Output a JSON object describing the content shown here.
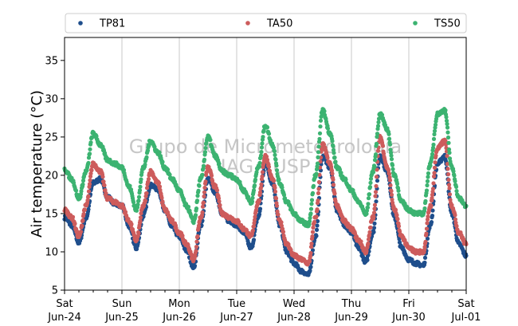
{
  "chart_data": {
    "type": "scatter",
    "title": "",
    "xlabel": "",
    "ylabel": "Air temperature (°C)",
    "ylim": [
      5,
      38
    ],
    "xlim": [
      "2024-06-24 00:00",
      "2024-07-01 00:00"
    ],
    "yticks": [
      5,
      10,
      15,
      20,
      25,
      30,
      35
    ],
    "xticks": [
      {
        "top": "Sat",
        "bottom": "Jun-24"
      },
      {
        "top": "Sun",
        "bottom": "Jun-25"
      },
      {
        "top": "Mon",
        "bottom": "Jun-26"
      },
      {
        "top": "Tue",
        "bottom": "Jun-27"
      },
      {
        "top": "Wed",
        "bottom": "Jun-28"
      },
      {
        "top": "Thu",
        "bottom": "Jun-29"
      },
      {
        "top": "Fri",
        "bottom": "Jun-30"
      },
      {
        "top": "Sat",
        "bottom": "Jul-01"
      }
    ],
    "grid": "vertical-daily",
    "legend": "top",
    "watermark": {
      "line1": "Grupo de Micrometeorologia",
      "line2": "IAG - USP"
    },
    "series": [
      {
        "name": "TP81",
        "color": "#1f4e8c",
        "points": [
          [
            "2024-06-24 00:00",
            14.5
          ],
          [
            "2024-06-24 03:00",
            13.5
          ],
          [
            "2024-06-24 06:00",
            11.2
          ],
          [
            "2024-06-24 09:00",
            14.5
          ],
          [
            "2024-06-24 12:00",
            19.0
          ],
          [
            "2024-06-24 15:00",
            19.5
          ],
          [
            "2024-06-24 18:00",
            17.2
          ],
          [
            "2024-06-24 21:00",
            16.3
          ],
          [
            "2024-06-25 00:00",
            16.0
          ],
          [
            "2024-06-25 03:00",
            13.3
          ],
          [
            "2024-06-25 06:00",
            10.5
          ],
          [
            "2024-06-25 09:00",
            14.8
          ],
          [
            "2024-06-25 12:00",
            18.7
          ],
          [
            "2024-06-25 15:00",
            18.2
          ],
          [
            "2024-06-25 18:00",
            15.5
          ],
          [
            "2024-06-25 21:00",
            13.2
          ],
          [
            "2024-06-26 00:00",
            12.0
          ],
          [
            "2024-06-26 03:00",
            10.2
          ],
          [
            "2024-06-26 06:00",
            8.0
          ],
          [
            "2024-06-26 09:00",
            13.5
          ],
          [
            "2024-06-26 12:00",
            19.5
          ],
          [
            "2024-06-26 15:00",
            17.8
          ],
          [
            "2024-06-26 18:00",
            15.0
          ],
          [
            "2024-06-26 21:00",
            14.0
          ],
          [
            "2024-06-27 00:00",
            13.5
          ],
          [
            "2024-06-27 03:00",
            12.5
          ],
          [
            "2024-06-27 06:00",
            10.5
          ],
          [
            "2024-06-27 09:00",
            14.5
          ],
          [
            "2024-06-27 12:00",
            21.5
          ],
          [
            "2024-06-27 15:00",
            19.0
          ],
          [
            "2024-06-27 18:00",
            13.5
          ],
          [
            "2024-06-27 21:00",
            10.0
          ],
          [
            "2024-06-28 00:00",
            8.5
          ],
          [
            "2024-06-28 03:00",
            7.5
          ],
          [
            "2024-06-28 06:00",
            7.0
          ],
          [
            "2024-06-28 09:00",
            12.0
          ],
          [
            "2024-06-28 12:00",
            22.5
          ],
          [
            "2024-06-28 15:00",
            21.0
          ],
          [
            "2024-06-28 18:00",
            15.5
          ],
          [
            "2024-06-28 21:00",
            13.5
          ],
          [
            "2024-06-29 00:00",
            12.5
          ],
          [
            "2024-06-29 03:00",
            10.5
          ],
          [
            "2024-06-29 06:00",
            8.7
          ],
          [
            "2024-06-29 09:00",
            12.5
          ],
          [
            "2024-06-29 12:00",
            22.5
          ],
          [
            "2024-06-29 15:00",
            20.5
          ],
          [
            "2024-06-29 18:00",
            14.5
          ],
          [
            "2024-06-29 21:00",
            10.5
          ],
          [
            "2024-06-30 00:00",
            9.0
          ],
          [
            "2024-06-30 03:00",
            8.5
          ],
          [
            "2024-06-30 06:00",
            8.2
          ],
          [
            "2024-06-30 09:00",
            13.5
          ],
          [
            "2024-06-30 12:00",
            21.5
          ],
          [
            "2024-06-30 15:00",
            22.5
          ],
          [
            "2024-06-30 18:00",
            15.0
          ],
          [
            "2024-06-30 21:00",
            11.0
          ],
          [
            "2024-07-01 00:00",
            9.5
          ]
        ]
      },
      {
        "name": "TA50",
        "color": "#cd5c5c",
        "points": [
          [
            "2024-06-24 00:00",
            15.5
          ],
          [
            "2024-06-24 03:00",
            14.5
          ],
          [
            "2024-06-24 06:00",
            12.0
          ],
          [
            "2024-06-24 09:00",
            16.0
          ],
          [
            "2024-06-24 12:00",
            21.5
          ],
          [
            "2024-06-24 15:00",
            20.5
          ],
          [
            "2024-06-24 18:00",
            17.0
          ],
          [
            "2024-06-24 21:00",
            16.5
          ],
          [
            "2024-06-25 00:00",
            16.0
          ],
          [
            "2024-06-25 03:00",
            14.0
          ],
          [
            "2024-06-25 06:00",
            11.5
          ],
          [
            "2024-06-25 09:00",
            16.0
          ],
          [
            "2024-06-25 12:00",
            20.5
          ],
          [
            "2024-06-25 15:00",
            19.0
          ],
          [
            "2024-06-25 18:00",
            15.5
          ],
          [
            "2024-06-25 21:00",
            14.0
          ],
          [
            "2024-06-26 00:00",
            12.5
          ],
          [
            "2024-06-26 03:00",
            11.0
          ],
          [
            "2024-06-26 06:00",
            9.0
          ],
          [
            "2024-06-26 09:00",
            14.5
          ],
          [
            "2024-06-26 12:00",
            21.0
          ],
          [
            "2024-06-26 15:00",
            18.5
          ],
          [
            "2024-06-26 18:00",
            15.0
          ],
          [
            "2024-06-26 21:00",
            14.5
          ],
          [
            "2024-06-27 00:00",
            14.0
          ],
          [
            "2024-06-27 03:00",
            13.0
          ],
          [
            "2024-06-27 06:00",
            12.0
          ],
          [
            "2024-06-27 09:00",
            16.5
          ],
          [
            "2024-06-27 12:00",
            22.5
          ],
          [
            "2024-06-27 15:00",
            19.5
          ],
          [
            "2024-06-27 18:00",
            14.0
          ],
          [
            "2024-06-27 21:00",
            11.0
          ],
          [
            "2024-06-28 00:00",
            9.5
          ],
          [
            "2024-06-28 03:00",
            9.0
          ],
          [
            "2024-06-28 06:00",
            8.5
          ],
          [
            "2024-06-28 09:00",
            14.5
          ],
          [
            "2024-06-28 12:00",
            24.0
          ],
          [
            "2024-06-28 15:00",
            21.5
          ],
          [
            "2024-06-28 18:00",
            16.0
          ],
          [
            "2024-06-28 21:00",
            14.0
          ],
          [
            "2024-06-29 00:00",
            13.0
          ],
          [
            "2024-06-29 03:00",
            11.5
          ],
          [
            "2024-06-29 06:00",
            10.0
          ],
          [
            "2024-06-29 09:00",
            14.5
          ],
          [
            "2024-06-29 12:00",
            25.0
          ],
          [
            "2024-06-29 15:00",
            21.0
          ],
          [
            "2024-06-29 18:00",
            15.5
          ],
          [
            "2024-06-29 21:00",
            12.0
          ],
          [
            "2024-06-30 00:00",
            10.5
          ],
          [
            "2024-06-30 03:00",
            10.0
          ],
          [
            "2024-06-30 06:00",
            10.0
          ],
          [
            "2024-06-30 09:00",
            16.0
          ],
          [
            "2024-06-30 12:00",
            23.5
          ],
          [
            "2024-06-30 15:00",
            24.5
          ],
          [
            "2024-06-30 18:00",
            16.0
          ],
          [
            "2024-06-30 21:00",
            12.5
          ],
          [
            "2024-07-01 00:00",
            11.0
          ]
        ]
      },
      {
        "name": "TS50",
        "color": "#3cb371",
        "points": [
          [
            "2024-06-24 00:00",
            20.8
          ],
          [
            "2024-06-24 03:00",
            19.5
          ],
          [
            "2024-06-24 06:00",
            17.0
          ],
          [
            "2024-06-24 09:00",
            20.5
          ],
          [
            "2024-06-24 12:00",
            25.5
          ],
          [
            "2024-06-24 15:00",
            24.0
          ],
          [
            "2024-06-24 18:00",
            22.0
          ],
          [
            "2024-06-24 21:00",
            21.5
          ],
          [
            "2024-06-25 00:00",
            21.0
          ],
          [
            "2024-06-25 03:00",
            18.5
          ],
          [
            "2024-06-25 06:00",
            15.5
          ],
          [
            "2024-06-25 09:00",
            21.0
          ],
          [
            "2024-06-25 12:00",
            24.5
          ],
          [
            "2024-06-25 15:00",
            23.0
          ],
          [
            "2024-06-25 18:00",
            21.0
          ],
          [
            "2024-06-25 21:00",
            19.5
          ],
          [
            "2024-06-26 00:00",
            18.0
          ],
          [
            "2024-06-26 03:00",
            16.0
          ],
          [
            "2024-06-26 06:00",
            14.0
          ],
          [
            "2024-06-26 09:00",
            19.5
          ],
          [
            "2024-06-26 12:00",
            25.0
          ],
          [
            "2024-06-26 15:00",
            22.5
          ],
          [
            "2024-06-26 18:00",
            20.5
          ],
          [
            "2024-06-26 21:00",
            20.0
          ],
          [
            "2024-06-27 00:00",
            19.5
          ],
          [
            "2024-06-27 03:00",
            18.0
          ],
          [
            "2024-06-27 06:00",
            16.5
          ],
          [
            "2024-06-27 09:00",
            21.0
          ],
          [
            "2024-06-27 12:00",
            26.5
          ],
          [
            "2024-06-27 15:00",
            24.0
          ],
          [
            "2024-06-27 18:00",
            19.0
          ],
          [
            "2024-06-27 21:00",
            16.5
          ],
          [
            "2024-06-28 00:00",
            15.0
          ],
          [
            "2024-06-28 03:00",
            14.0
          ],
          [
            "2024-06-28 06:00",
            13.5
          ],
          [
            "2024-06-28 09:00",
            20.0
          ],
          [
            "2024-06-28 12:00",
            28.5
          ],
          [
            "2024-06-28 15:00",
            25.5
          ],
          [
            "2024-06-28 18:00",
            21.0
          ],
          [
            "2024-06-28 21:00",
            19.5
          ],
          [
            "2024-06-29 00:00",
            18.0
          ],
          [
            "2024-06-29 03:00",
            16.5
          ],
          [
            "2024-06-29 06:00",
            15.0
          ],
          [
            "2024-06-29 09:00",
            20.5
          ],
          [
            "2024-06-29 12:00",
            28.0
          ],
          [
            "2024-06-29 15:00",
            26.0
          ],
          [
            "2024-06-29 18:00",
            20.0
          ],
          [
            "2024-06-29 21:00",
            16.5
          ],
          [
            "2024-06-30 00:00",
            15.5
          ],
          [
            "2024-06-30 03:00",
            15.0
          ],
          [
            "2024-06-30 06:00",
            15.0
          ],
          [
            "2024-06-30 09:00",
            21.5
          ],
          [
            "2024-06-30 12:00",
            28.0
          ],
          [
            "2024-06-30 15:00",
            28.5
          ],
          [
            "2024-06-30 18:00",
            21.0
          ],
          [
            "2024-06-30 21:00",
            17.0
          ],
          [
            "2024-07-01 00:00",
            16.0
          ]
        ]
      }
    ]
  }
}
